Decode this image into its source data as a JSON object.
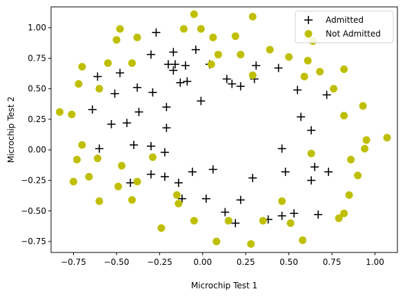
{
  "chart_data": {
    "type": "scatter",
    "xlabel": "Microchip Test 1",
    "ylabel": "Microchip Test 2",
    "xlim": [
      -0.88,
      1.13
    ],
    "ylim": [
      -0.84,
      1.17
    ],
    "xticks": [
      -0.75,
      -0.5,
      -0.25,
      0.0,
      0.25,
      0.5,
      0.75,
      1.0
    ],
    "xtick_labels": [
      "−0.75",
      "−0.50",
      "−0.25",
      "0.00",
      "0.25",
      "0.50",
      "0.75",
      "1.00"
    ],
    "yticks": [
      -0.75,
      -0.5,
      -0.25,
      0.0,
      0.25,
      0.5,
      0.75,
      1.0
    ],
    "ytick_labels": [
      "−0.75",
      "−0.50",
      "−0.25",
      "0.00",
      "0.25",
      "0.50",
      "0.75",
      "1.00"
    ],
    "legend_position": "top-right",
    "grid": false,
    "series": [
      {
        "name": "Admitted",
        "marker": "plus",
        "color": "#000000",
        "points": [
          [
            -0.27,
            0.96
          ],
          [
            -0.17,
            0.8
          ],
          [
            -0.04,
            0.82
          ],
          [
            -0.3,
            0.78
          ],
          [
            -0.2,
            0.7
          ],
          [
            -0.16,
            0.7
          ],
          [
            -0.1,
            0.69
          ],
          [
            -0.17,
            0.65
          ],
          [
            -0.48,
            0.63
          ],
          [
            -0.61,
            0.6
          ],
          [
            0.04,
            0.7
          ],
          [
            0.31,
            0.69
          ],
          [
            0.44,
            0.67
          ],
          [
            -0.38,
            0.51
          ],
          [
            -0.13,
            0.55
          ],
          [
            -0.09,
            0.56
          ],
          [
            0.14,
            0.58
          ],
          [
            0.17,
            0.54
          ],
          [
            0.22,
            0.52
          ],
          [
            0.3,
            0.58
          ],
          [
            -0.51,
            0.46
          ],
          [
            -0.29,
            0.47
          ],
          [
            0.55,
            0.49
          ],
          [
            0.72,
            0.45
          ],
          [
            -0.64,
            0.33
          ],
          [
            -0.37,
            0.31
          ],
          [
            -0.21,
            0.35
          ],
          [
            -0.01,
            0.4
          ],
          [
            0.57,
            0.27
          ],
          [
            -0.53,
            0.21
          ],
          [
            -0.44,
            0.22
          ],
          [
            -0.21,
            0.18
          ],
          [
            0.63,
            0.16
          ],
          [
            -0.6,
            0.01
          ],
          [
            -0.4,
            0.04
          ],
          [
            -0.3,
            0.03
          ],
          [
            -0.22,
            -0.02
          ],
          [
            0.46,
            0.01
          ],
          [
            0.65,
            -0.14
          ],
          [
            -0.42,
            -0.27
          ],
          [
            -0.3,
            -0.2
          ],
          [
            -0.22,
            -0.22
          ],
          [
            -0.14,
            -0.27
          ],
          [
            -0.06,
            -0.18
          ],
          [
            0.06,
            -0.16
          ],
          [
            0.29,
            -0.23
          ],
          [
            0.48,
            -0.18
          ],
          [
            0.63,
            -0.25
          ],
          [
            0.73,
            -0.18
          ],
          [
            -0.12,
            -0.4
          ],
          [
            0.02,
            -0.4
          ],
          [
            0.13,
            -0.51
          ],
          [
            0.22,
            -0.41
          ],
          [
            0.19,
            -0.6
          ],
          [
            0.38,
            -0.57
          ],
          [
            0.46,
            -0.54
          ],
          [
            0.53,
            -0.52
          ],
          [
            0.67,
            -0.53
          ]
        ]
      },
      {
        "name": "Not Admitted",
        "marker": "circle",
        "color": "#bfbf00",
        "points": [
          [
            -0.05,
            1.11
          ],
          [
            0.29,
            1.09
          ],
          [
            -0.48,
            0.99
          ],
          [
            -0.11,
            0.99
          ],
          [
            -0.01,
            0.99
          ],
          [
            -0.5,
            0.9
          ],
          [
            -0.38,
            0.92
          ],
          [
            0.06,
            0.92
          ],
          [
            0.19,
            0.93
          ],
          [
            0.64,
            0.89
          ],
          [
            0.39,
            0.82
          ],
          [
            0.5,
            0.76
          ],
          [
            0.09,
            0.78
          ],
          [
            0.22,
            0.78
          ],
          [
            0.61,
            0.73
          ],
          [
            -0.7,
            0.68
          ],
          [
            -0.55,
            0.71
          ],
          [
            -0.41,
            0.71
          ],
          [
            0.05,
            0.7
          ],
          [
            0.68,
            0.64
          ],
          [
            0.82,
            0.66
          ],
          [
            0.29,
            0.61
          ],
          [
            0.59,
            0.6
          ],
          [
            -0.72,
            0.54
          ],
          [
            -0.6,
            0.5
          ],
          [
            0.76,
            0.5
          ],
          [
            -0.83,
            0.31
          ],
          [
            -0.76,
            0.29
          ],
          [
            0.93,
            0.36
          ],
          [
            0.82,
            0.28
          ],
          [
            -0.7,
            0.04
          ],
          [
            0.95,
            0.08
          ],
          [
            1.07,
            0.1
          ],
          [
            0.94,
            0.01
          ],
          [
            -0.73,
            -0.08
          ],
          [
            -0.61,
            -0.07
          ],
          [
            -0.29,
            -0.06
          ],
          [
            0.63,
            -0.03
          ],
          [
            0.86,
            -0.08
          ],
          [
            -0.47,
            -0.13
          ],
          [
            -0.66,
            -0.22
          ],
          [
            -0.75,
            -0.26
          ],
          [
            -0.49,
            -0.3
          ],
          [
            -0.38,
            -0.26
          ],
          [
            0.9,
            -0.21
          ],
          [
            -0.6,
            -0.42
          ],
          [
            -0.41,
            -0.41
          ],
          [
            -0.15,
            -0.37
          ],
          [
            -0.14,
            -0.44
          ],
          [
            0.46,
            -0.42
          ],
          [
            0.85,
            -0.37
          ],
          [
            -0.05,
            -0.58
          ],
          [
            0.15,
            -0.58
          ],
          [
            0.35,
            -0.58
          ],
          [
            0.51,
            -0.6
          ],
          [
            0.79,
            -0.56
          ],
          [
            0.82,
            -0.52
          ],
          [
            -0.24,
            -0.64
          ],
          [
            0.08,
            -0.75
          ],
          [
            0.28,
            -0.77
          ],
          [
            0.58,
            -0.74
          ]
        ]
      }
    ]
  }
}
